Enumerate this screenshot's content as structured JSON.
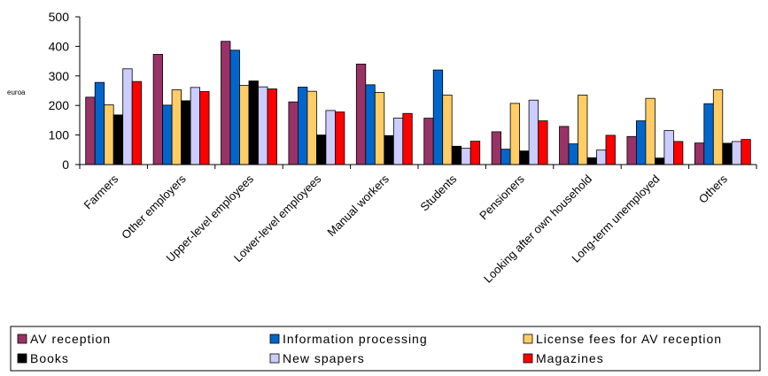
{
  "chart_data": {
    "type": "bar",
    "title": "",
    "xlabel": "",
    "ylabel": "euroa",
    "ylim": [
      0,
      500
    ],
    "yticks": [
      0,
      100,
      200,
      300,
      400,
      500
    ],
    "grid": false,
    "legend_position": "bottom",
    "categories": [
      "Farmers",
      "Other employers",
      "Upper-level employees",
      "Lower-level employees",
      "Manual workers",
      "Students",
      "Pensioners",
      "Looking after own household",
      "Long-term unemployed",
      "Others"
    ],
    "series": [
      {
        "name": "AV reception",
        "color": "#993366",
        "values": [
          228,
          373,
          417,
          212,
          340,
          157,
          111,
          129,
          95,
          73
        ]
      },
      {
        "name": "Information processing",
        "color": "#0066cc",
        "values": [
          278,
          201,
          387,
          262,
          270,
          320,
          52,
          70,
          148,
          206
        ]
      },
      {
        "name": "License fees for AV reception",
        "color": "#ffcc66",
        "values": [
          202,
          253,
          268,
          248,
          244,
          235,
          207,
          235,
          224,
          253
        ]
      },
      {
        "name": "Books",
        "color": "#000000",
        "values": [
          168,
          216,
          283,
          100,
          98,
          62,
          46,
          23,
          22,
          72
        ]
      },
      {
        "name": "New spapers",
        "color": "#ccccff",
        "values": [
          324,
          261,
          263,
          183,
          157,
          55,
          218,
          49,
          115,
          78
        ]
      },
      {
        "name": "Magazines",
        "color": "#ff0000",
        "values": [
          281,
          247,
          256,
          178,
          173,
          79,
          148,
          99,
          78,
          85
        ]
      }
    ]
  }
}
